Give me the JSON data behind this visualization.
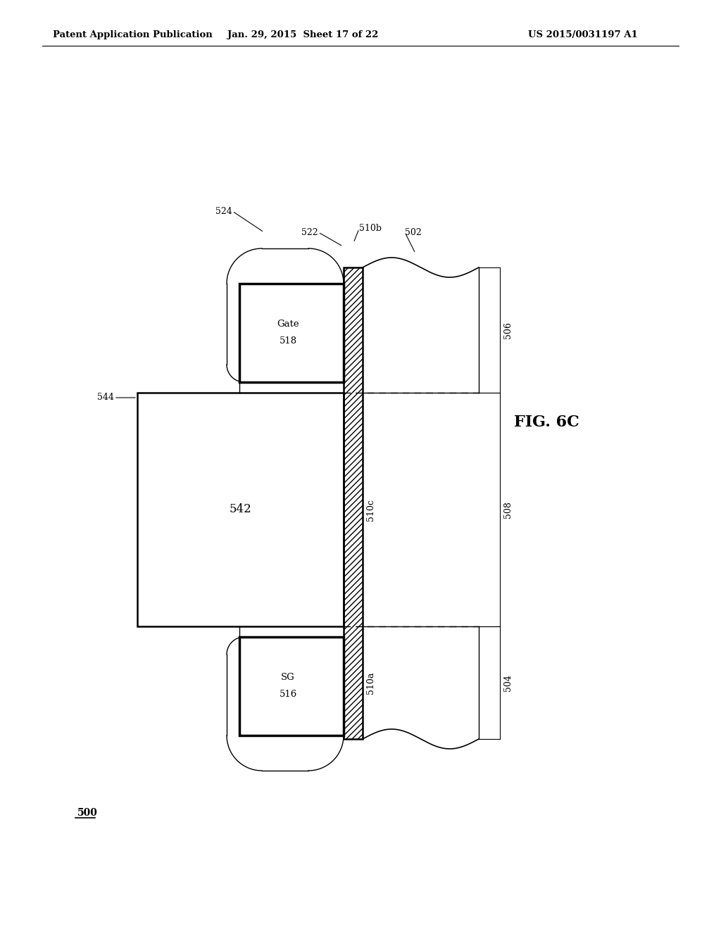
{
  "bg_color": "#ffffff",
  "header_left": "Patent Application Publication",
  "header_mid": "Jan. 29, 2015  Sheet 17 of 22",
  "header_right": "US 2015/0031197 A1",
  "fig_label": "FIG. 6C",
  "bottom_label": "500"
}
